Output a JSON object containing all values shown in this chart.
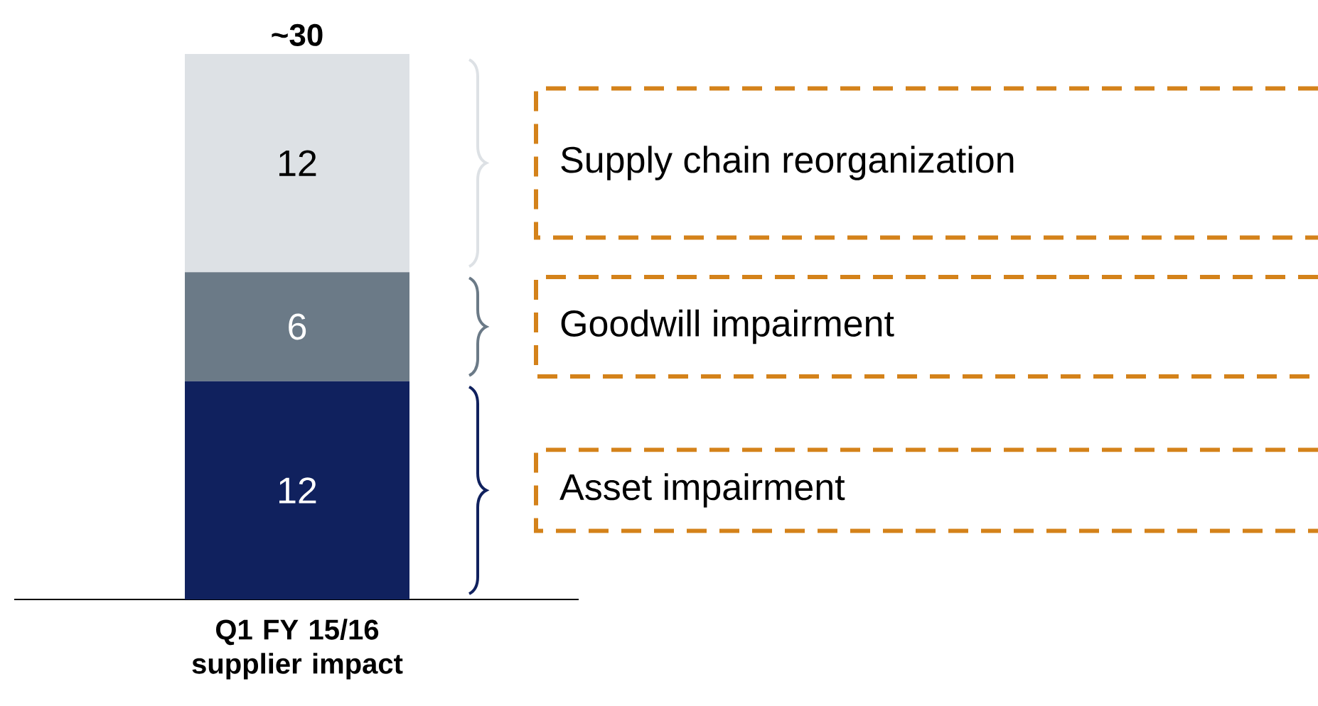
{
  "chart_data": {
    "type": "bar",
    "stacked": true,
    "data_labels": true,
    "categories": [
      "Q1 FY 15/16 supplier impact"
    ],
    "series": [
      {
        "name": "Asset impairment",
        "color": "#10215e",
        "values": [
          12
        ]
      },
      {
        "name": "Goodwill impairment",
        "color": "#6b7a87",
        "values": [
          6
        ]
      },
      {
        "name": "Supply chain reorganization",
        "color": "#dde1e5",
        "values": [
          12
        ]
      }
    ],
    "totals": [
      "~30"
    ]
  }
}
